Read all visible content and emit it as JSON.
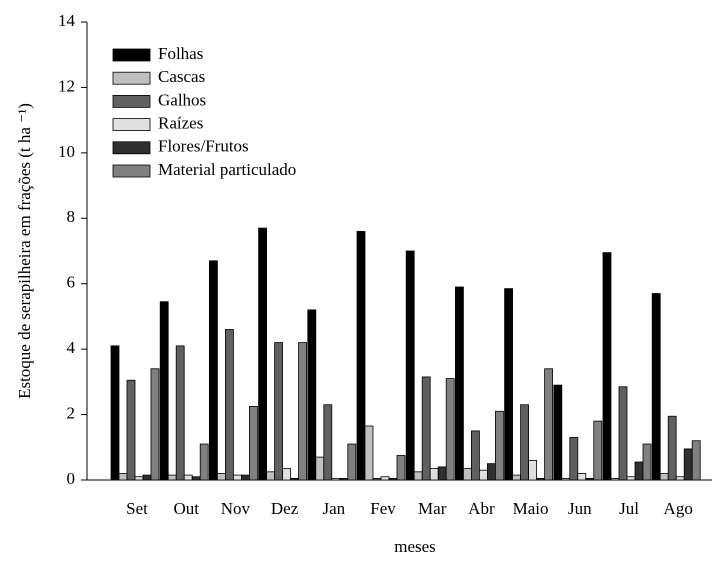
{
  "chart_data": {
    "type": "bar",
    "xlabel": "meses",
    "ylabel": "Estoque de serapilheira  em frações (t ha ⁻¹)",
    "categories": [
      "Set",
      "Out",
      "Nov",
      "Dez",
      "Jan",
      "Fev",
      "Mar",
      "Abr",
      "Maio",
      "Jun",
      "Jul",
      "Ago"
    ],
    "series": [
      {
        "name": "Folhas",
        "color": "#000000",
        "values": [
          4.1,
          5.45,
          6.7,
          7.7,
          5.2,
          7.6,
          7.0,
          5.9,
          5.85,
          2.9,
          6.95,
          5.7
        ]
      },
      {
        "name": "Cascas",
        "color": "#c0c0c0",
        "values": [
          0.2,
          0.15,
          0.2,
          0.25,
          0.7,
          1.65,
          0.25,
          0.35,
          0.15,
          0.05,
          0.05,
          0.2
        ]
      },
      {
        "name": "Galhos",
        "color": "#606060",
        "values": [
          3.05,
          4.1,
          4.6,
          4.2,
          2.3,
          0.05,
          3.15,
          1.5,
          2.3,
          1.3,
          2.85,
          1.95
        ]
      },
      {
        "name": "Raízes",
        "color": "#e0e0e0",
        "values": [
          0.1,
          0.15,
          0.15,
          0.35,
          0.05,
          0.1,
          0.35,
          0.3,
          0.6,
          0.2,
          0.1,
          0.1
        ]
      },
      {
        "name": "Flores/Frutos",
        "color": "#303030",
        "values": [
          0.15,
          0.1,
          0.15,
          0.05,
          0.05,
          0.05,
          0.4,
          0.5,
          0.05,
          0.05,
          0.55,
          0.95
        ]
      },
      {
        "name": "Material particulado",
        "color": "#808080",
        "values": [
          3.4,
          1.1,
          2.25,
          4.2,
          1.1,
          0.75,
          3.1,
          2.1,
          3.4,
          1.8,
          1.1,
          1.2
        ]
      }
    ],
    "ylim": [
      0,
      14
    ],
    "yticks": [
      0,
      2,
      4,
      6,
      8,
      10,
      12,
      14
    ],
    "legend": "upper left"
  }
}
